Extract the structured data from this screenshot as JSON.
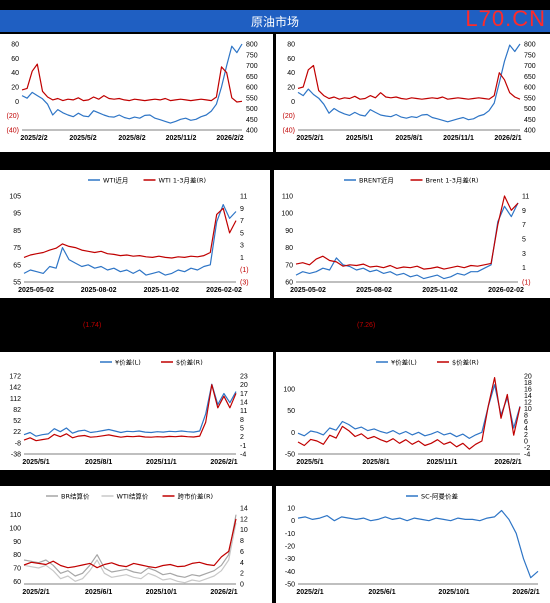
{
  "header": {
    "title": "原油市场",
    "watermark": "L70.CN"
  },
  "notes": [
    "(1.74)",
    "(7.26)"
  ],
  "colors": {
    "blue": "#2e75c6",
    "red": "#c00000",
    "grey1": "#a6a6a6",
    "grey2": "#c8c8c8"
  },
  "chart_data": [
    {
      "type": "line",
      "id": "c1",
      "x_labels": [
        "2025/2/2",
        "2025/5/2",
        "2025/8/2",
        "2025/11/2",
        "2026/2/2"
      ],
      "yleft_labels": [
        "80",
        "60",
        "40",
        "20",
        "0",
        "(20)",
        "(40)"
      ],
      "ylim_left": [
        -40,
        80
      ],
      "yright_labels": [
        "800",
        "750",
        "700",
        "650",
        "600",
        "550",
        "500",
        "450",
        "400"
      ],
      "ylim_right": [
        400,
        800
      ],
      "series": [
        {
          "axis": "right",
          "color": "blue",
          "values": [
            560,
            548,
            575,
            560,
            545,
            520,
            470,
            495,
            480,
            470,
            462,
            478,
            465,
            462,
            490,
            480,
            470,
            462,
            460,
            470,
            458,
            452,
            460,
            455,
            468,
            470,
            455,
            448,
            440,
            432,
            440,
            450,
            455,
            445,
            450,
            462,
            470,
            488,
            520,
            600,
            700,
            790,
            760,
            800
          ]
        },
        {
          "axis": "left",
          "color": "red",
          "values": [
            16,
            18,
            42,
            52,
            14,
            6,
            2,
            4,
            1,
            3,
            2,
            5,
            1,
            2,
            6,
            3,
            8,
            4,
            3,
            4,
            2,
            1,
            3,
            2,
            1,
            2,
            3,
            2,
            4,
            1,
            2,
            3,
            2,
            1,
            2,
            3,
            2,
            1,
            6,
            48,
            40,
            5,
            -1,
            0
          ]
        }
      ]
    },
    {
      "type": "line",
      "id": "c2",
      "x_labels": [
        "2025/2/1",
        "2025/5/1",
        "2025/8/1",
        "2025/11/1",
        "2026/2/1"
      ],
      "yleft_labels": [
        "80",
        "60",
        "40",
        "20",
        "0",
        "(20)",
        "(40)"
      ],
      "ylim_left": [
        -40,
        80
      ],
      "yright_labels": [
        "800",
        "750",
        "700",
        "650",
        "600",
        "550",
        "500",
        "450",
        "400"
      ],
      "ylim_right": [
        400,
        800
      ],
      "series": [
        {
          "axis": "right",
          "color": "blue",
          "values": [
            575,
            560,
            590,
            565,
            548,
            520,
            478,
            500,
            485,
            475,
            468,
            482,
            470,
            465,
            495,
            482,
            470,
            465,
            462,
            472,
            460,
            455,
            462,
            458,
            470,
            472,
            458,
            452,
            445,
            438,
            445,
            452,
            458,
            448,
            452,
            465,
            472,
            490,
            525,
            620,
            720,
            795,
            765,
            800
          ]
        },
        {
          "axis": "left",
          "color": "red",
          "values": [
            18,
            20,
            44,
            50,
            15,
            8,
            4,
            6,
            3,
            5,
            4,
            7,
            3,
            4,
            8,
            5,
            12,
            6,
            5,
            6,
            4,
            3,
            5,
            4,
            3,
            4,
            5,
            4,
            6,
            3,
            4,
            5,
            4,
            3,
            4,
            5,
            4,
            3,
            8,
            40,
            30,
            12,
            6,
            3
          ]
        }
      ]
    },
    {
      "type": "line",
      "id": "c3",
      "legend": [
        "WTI近月",
        "WTI 1-3月差(R)"
      ],
      "x_labels": [
        "2025-05-02",
        "2025-08-02",
        "2025-11-02",
        "2026-02-02"
      ],
      "yleft_labels": [
        "105",
        "95",
        "85",
        "75",
        "65",
        "55"
      ],
      "ylim_left": [
        55,
        105
      ],
      "yright_labels": [
        "11",
        "9",
        "7",
        "5",
        "3",
        "1",
        "(1)",
        "(3)"
      ],
      "ylim_right": [
        -3,
        11
      ],
      "series": [
        {
          "axis": "left",
          "color": "blue",
          "values": [
            60,
            62,
            61,
            60,
            64,
            63,
            75,
            68,
            66,
            64,
            65,
            63,
            64,
            62,
            63,
            61,
            62,
            60,
            62,
            59,
            60,
            61,
            59,
            60,
            62,
            61,
            63,
            62,
            64,
            65,
            90,
            100,
            92,
            96
          ]
        },
        {
          "axis": "right",
          "color": "red",
          "values": [
            1.0,
            1.4,
            1.6,
            1.8,
            2.2,
            2.5,
            3.2,
            2.8,
            2.6,
            2.2,
            2.0,
            1.8,
            2.0,
            1.6,
            1.5,
            1.3,
            1.4,
            1.2,
            1.3,
            1.1,
            1.0,
            1.2,
            1.0,
            0.9,
            1.1,
            1.0,
            1.2,
            1.1,
            1.3,
            1.8,
            8,
            9,
            5,
            7
          ]
        }
      ]
    },
    {
      "type": "line",
      "id": "c4",
      "legend": [
        "BRENT近月",
        "Brent 1-3月差(R)"
      ],
      "x_labels": [
        "2025-05-02",
        "2025-08-02",
        "2025-11-02",
        "2026-02-02"
      ],
      "yleft_labels": [
        "110",
        "100",
        "90",
        "80",
        "70",
        "60"
      ],
      "ylim_left": [
        60,
        110
      ],
      "yright_labels": [
        "11",
        "9",
        "7",
        "5",
        "3",
        "1",
        "(1)"
      ],
      "ylim_right": [
        -1,
        11
      ],
      "series": [
        {
          "axis": "left",
          "color": "blue",
          "values": [
            64,
            66,
            65,
            66,
            68,
            67,
            74,
            70,
            69,
            67,
            68,
            66,
            67,
            65,
            66,
            64,
            65,
            63,
            64,
            62,
            63,
            64,
            62,
            63,
            65,
            64,
            66,
            66,
            68,
            70,
            95,
            104,
            98,
            106
          ]
        },
        {
          "axis": "right",
          "color": "red",
          "values": [
            1.5,
            1.7,
            1.4,
            2.2,
            2.6,
            2.0,
            1.8,
            1.2,
            1.4,
            1.3,
            1.5,
            1.1,
            1.2,
            1.0,
            1.3,
            0.9,
            1.1,
            1.0,
            1.2,
            0.8,
            0.9,
            1.1,
            0.8,
            1.0,
            1.2,
            1.0,
            1.3,
            1.2,
            1.4,
            1.6,
            7,
            11,
            9,
            10
          ]
        }
      ]
    },
    {
      "type": "line",
      "id": "c5",
      "legend": [
        "¥价差(L)",
        "$价差(R)"
      ],
      "x_labels": [
        "2025/5/1",
        "2025/8/1",
        "2025/11/1",
        "2026/2/1"
      ],
      "yleft_labels": [
        "172",
        "142",
        "112",
        "82",
        "52",
        "22",
        "-8",
        "-38"
      ],
      "ylim_left": [
        -38,
        172
      ],
      "yright_labels": [
        "23",
        "20",
        "17",
        "14",
        "11",
        "8",
        "5",
        "2",
        "-1",
        "-4"
      ],
      "ylim_right": [
        -4,
        23
      ],
      "series": [
        {
          "axis": "left",
          "color": "blue",
          "values": [
            14,
            20,
            10,
            14,
            16,
            30,
            22,
            32,
            18,
            24,
            26,
            20,
            22,
            25,
            28,
            24,
            20,
            23,
            22,
            24,
            21,
            20,
            22,
            21,
            23,
            22,
            24,
            22,
            21,
            24,
            70,
            150,
            95,
            125,
            100,
            130
          ]
        },
        {
          "axis": "right",
          "color": "red",
          "values": [
            0.8,
            1.6,
            0.6,
            1.0,
            1.3,
            2.8,
            2.0,
            3.0,
            1.6,
            2.2,
            2.4,
            1.8,
            2.0,
            2.3,
            2.6,
            2.2,
            1.8,
            2.1,
            2.0,
            2.2,
            1.9,
            1.8,
            2.0,
            1.9,
            2.1,
            2.0,
            2.2,
            2.0,
            1.9,
            2.2,
            7,
            20,
            12,
            16,
            12,
            17
          ]
        }
      ]
    },
    {
      "type": "line",
      "id": "c6",
      "legend": [
        "¥价差(L)",
        "$价差(R)"
      ],
      "x_labels": [
        "2025/5/1",
        "2025/8/1",
        "2025/11/1",
        "2026/2/1"
      ],
      "yleft_labels": [
        "100",
        "50",
        "0",
        "-50"
      ],
      "ylim_left": [
        -50,
        130
      ],
      "yright_labels": [
        "20",
        "18",
        "16",
        "14",
        "12",
        "10",
        "8",
        "6",
        "4",
        "2",
        "0",
        "-2",
        "-4"
      ],
      "ylim_right": [
        -4,
        20
      ],
      "series": [
        {
          "axis": "left",
          "color": "blue",
          "values": [
            -2,
            -8,
            3,
            0,
            -6,
            10,
            5,
            25,
            18,
            8,
            12,
            4,
            8,
            2,
            -2,
            4,
            -4,
            2,
            -6,
            0,
            -8,
            -4,
            2,
            -6,
            -2,
            -10,
            -4,
            -14,
            -6,
            0,
            60,
            110,
            40,
            80,
            10,
            60
          ]
        },
        {
          "axis": "right",
          "color": "red",
          "values": [
            -0.3,
            -1.4,
            0.5,
            0,
            -1,
            1.8,
            0.9,
            4.5,
            3.2,
            1.4,
            2.2,
            0.7,
            1.4,
            0.4,
            -0.3,
            0.7,
            -0.7,
            0.4,
            -1,
            0,
            -1.4,
            -0.7,
            0.4,
            -1,
            -0.3,
            -1.8,
            -0.7,
            -2.5,
            -1,
            0,
            10.8,
            19.5,
            7,
            14.3,
            1.8,
            10.5
          ]
        }
      ]
    },
    {
      "type": "line",
      "id": "c7",
      "legend": [
        "BR结算价",
        "WTI结算价",
        "跨市价差(R)"
      ],
      "x_labels": [
        "2025/2/1",
        "2025/6/1",
        "2025/10/1",
        "2026/2/1"
      ],
      "yleft_labels": [
        "110",
        "100",
        "90",
        "80",
        "70",
        "60"
      ],
      "ylim_left": [
        58,
        115
      ],
      "yright_labels": [
        "14",
        "12",
        "10",
        "8",
        "6",
        "4",
        "2",
        "0"
      ],
      "ylim_right": [
        0,
        14
      ],
      "series": [
        {
          "axis": "left",
          "color": "grey1",
          "values": [
            76,
            75,
            74,
            76,
            72,
            66,
            68,
            64,
            66,
            72,
            80,
            70,
            67,
            68,
            69,
            67,
            66,
            70,
            68,
            65,
            66,
            64,
            63,
            65,
            64,
            66,
            68,
            72,
            80,
            110
          ]
        },
        {
          "axis": "left",
          "color": "grey2",
          "values": [
            72,
            71,
            70,
            72,
            68,
            62,
            64,
            60,
            62,
            68,
            76,
            66,
            63,
            64,
            65,
            63,
            62,
            66,
            64,
            61,
            62,
            60,
            59,
            61,
            60,
            62,
            64,
            68,
            76,
            104
          ]
        },
        {
          "axis": "right",
          "color": "red",
          "values": [
            3.5,
            4.0,
            3.8,
            3.6,
            4.2,
            3.4,
            3.0,
            3.2,
            3.5,
            3.8,
            3.0,
            3.6,
            3.9,
            3.4,
            3.2,
            3.8,
            3.5,
            3.2,
            3.0,
            3.4,
            3.6,
            3.2,
            3.3,
            3.8,
            4.0,
            3.6,
            3.4,
            5.0,
            6.0,
            12
          ]
        }
      ]
    },
    {
      "type": "line",
      "id": "c8",
      "legend": [
        "SC-阿曼价差"
      ],
      "x_labels": [
        "2025/2/1",
        "2025/6/1",
        "2025/10/1",
        "2026/2/1"
      ],
      "yleft_labels": [
        "10",
        "0",
        "-10",
        "-20",
        "-30",
        "-40",
        "-50"
      ],
      "ylim_left": [
        -50,
        10
      ],
      "series": [
        {
          "axis": "left",
          "color": "blue",
          "values": [
            2,
            3,
            1,
            2,
            4,
            0,
            3,
            2,
            1,
            2,
            0,
            1,
            3,
            1,
            2,
            0,
            2,
            1,
            0,
            2,
            1,
            0,
            2,
            1,
            1,
            0,
            2,
            3,
            8,
            1,
            -10,
            -30,
            -45,
            -40
          ]
        }
      ]
    }
  ]
}
